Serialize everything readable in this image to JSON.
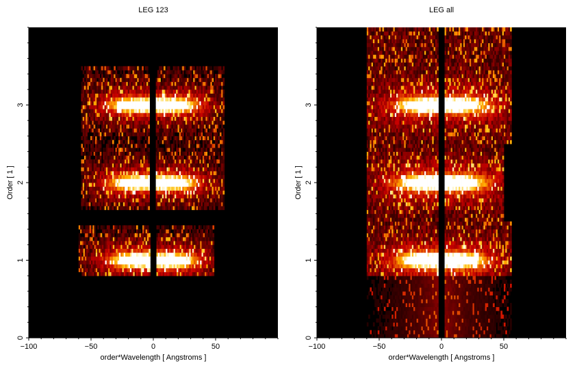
{
  "chart_data": [
    {
      "type": "heatmap",
      "title": "LEG 123",
      "xlabel": "order*Wavelength [ Angstroms ]",
      "ylabel": "Order [ 1 ]",
      "xlim": [
        -100,
        100
      ],
      "ylim": [
        0,
        4
      ],
      "xticks": [
        -100,
        -50,
        0,
        50
      ],
      "yticks": [
        0,
        1,
        2,
        3
      ],
      "colormap": "black-red-orange-yellow-white (heat)",
      "data_extent_x": [
        -60,
        57
      ],
      "data_extent_y": [
        0.8,
        3.5
      ],
      "bands": [
        {
          "order": 1,
          "x_range": [
            -60,
            48
          ],
          "y_range": [
            0.8,
            1.45
          ]
        },
        {
          "order": 2,
          "x_range": [
            -58,
            56
          ],
          "y_range": [
            1.65,
            2.45
          ]
        },
        {
          "order": 3,
          "x_range": [
            -58,
            57
          ],
          "y_range": [
            2.45,
            3.5
          ]
        }
      ],
      "bright_core_y": [
        1.0,
        2.0,
        3.0
      ],
      "gap_at_x": 0
    },
    {
      "type": "heatmap",
      "title": "LEG all",
      "xlabel": "order*Wavelength [ Angstroms ]",
      "ylabel": "Order [ 1 ]",
      "xlim": [
        -100,
        100
      ],
      "ylim": [
        0,
        4
      ],
      "xticks": [
        -100,
        -50,
        0,
        50
      ],
      "yticks": [
        0,
        1,
        2,
        3
      ],
      "colormap": "black-red-orange-yellow-white (heat)",
      "data_extent_x": [
        -60,
        56
      ],
      "data_extent_y": [
        0,
        4
      ],
      "bands": [
        {
          "order": 1,
          "x_range": [
            -60,
            56
          ],
          "y_range": [
            0.0,
            1.5
          ]
        },
        {
          "order": 2,
          "x_range": [
            -60,
            50
          ],
          "y_range": [
            1.5,
            2.5
          ]
        },
        {
          "order": 3,
          "x_range": [
            -60,
            56
          ],
          "y_range": [
            2.5,
            4.0
          ]
        }
      ],
      "bright_core_y": [
        1.0,
        2.0,
        3.0
      ],
      "gap_at_x": 0
    }
  ]
}
